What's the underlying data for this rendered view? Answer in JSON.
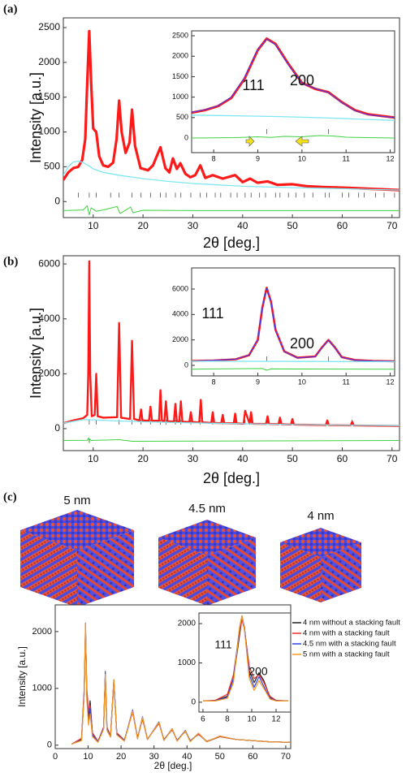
{
  "panels": [
    "(a)",
    "(b)",
    "(c)"
  ],
  "structures": [
    "5 nm",
    "4.5 nm",
    "4 nm"
  ],
  "chart_data": [
    {
      "type": "line",
      "xlabel": "2θ [deg.]",
      "ylabel": "Intensity [a.u.]",
      "xlim": [
        4,
        71.5
      ],
      "xticks": [
        10,
        20,
        30,
        40,
        50,
        60,
        70
      ],
      "ylim": [
        -230,
        2640
      ],
      "yticks": [
        0,
        500,
        1000,
        1500,
        2000,
        2500
      ],
      "series": [
        {
          "color": "#ff1a1a",
          "x": [
            4,
            5,
            6,
            7,
            7.8,
            8.4,
            8.8,
            9.2,
            9.6,
            10.0,
            10.6,
            11.2,
            12,
            13,
            14,
            14.7,
            15.2,
            15.7,
            16.5,
            17.3,
            17.8,
            18.4,
            19.5,
            21,
            22,
            23.5,
            24.5,
            25.3,
            26,
            26.8,
            27.5,
            28.5,
            29.5,
            30.5,
            31.5,
            32.5,
            34,
            36,
            38.5,
            40,
            41.5,
            43,
            45,
            47,
            50,
            53,
            56,
            60,
            65,
            71.5
          ],
          "values": [
            310,
            420,
            480,
            500,
            600,
            900,
            1700,
            2450,
            1700,
            1050,
            1000,
            650,
            520,
            500,
            560,
            900,
            1450,
            1000,
            700,
            850,
            1320,
            800,
            480,
            450,
            520,
            780,
            480,
            420,
            620,
            470,
            550,
            400,
            350,
            380,
            520,
            340,
            380,
            330,
            380,
            280,
            330,
            270,
            290,
            240,
            250,
            220,
            210,
            200,
            185,
            165
          ]
        },
        {
          "color": "#7fe6f2",
          "x": [
            4,
            5,
            6,
            7,
            8,
            9,
            10,
            12,
            15,
            20,
            25,
            30,
            40,
            50,
            60,
            71.5
          ],
          "values": [
            380,
            500,
            570,
            580,
            560,
            520,
            470,
            420,
            380,
            330,
            290,
            260,
            220,
            200,
            185,
            165
          ]
        },
        {
          "color": "#3ed23e",
          "x": [
            4,
            8,
            8.8,
            9.2,
            9.6,
            10.6,
            12,
            14.8,
            15.4,
            17.5,
            18,
            20,
            30,
            71.5
          ],
          "values": [
            -130,
            -120,
            -60,
            -190,
            -90,
            -140,
            -120,
            -70,
            -170,
            -80,
            -160,
            -125,
            -130,
            -130
          ]
        }
      ],
      "bragg_positions": [
        7,
        9.2,
        10.6,
        13.5,
        15.2,
        17.8,
        19.6,
        21.5,
        23.5,
        24.6,
        26.5,
        27.6,
        29.6,
        31.5,
        32.8,
        34.5,
        35.6,
        37.6,
        38.9,
        40.5,
        41.7,
        43.4,
        44.6,
        46.6,
        47.5,
        49.2,
        50.7,
        52.4,
        54.1,
        56.6,
        57.4,
        60,
        61.3,
        63.3,
        64.4,
        66.7,
        68.4,
        70.5
      ]
    },
    {
      "type": "line",
      "xlim": [
        7.5,
        12.1
      ],
      "xticks": [
        8,
        9,
        10,
        11,
        12
      ],
      "ylim": [
        -357,
        2620
      ],
      "yticks": [
        0,
        500,
        1000,
        1500,
        2000,
        2500
      ],
      "series": [
        {
          "color": "#ff1a1a",
          "x": [
            7.5,
            7.8,
            8.1,
            8.4,
            8.7,
            9.0,
            9.2,
            9.4,
            9.7,
            10.0,
            10.3,
            10.6,
            10.9,
            11.2,
            11.5,
            11.8,
            12.1
          ],
          "values": [
            620,
            680,
            780,
            980,
            1450,
            2150,
            2430,
            2300,
            1800,
            1350,
            1200,
            1120,
            880,
            680,
            580,
            540,
            500
          ]
        },
        {
          "color": "#3a3aff",
          "x": [
            7.5,
            7.8,
            8.1,
            8.4,
            8.7,
            9.0,
            9.2,
            9.4,
            9.7,
            10.0,
            10.3,
            10.6,
            10.9,
            11.2,
            11.5,
            11.8,
            12.1
          ],
          "values": [
            630,
            690,
            790,
            1000,
            1480,
            2170,
            2420,
            2280,
            1780,
            1340,
            1210,
            1110,
            870,
            670,
            570,
            530,
            500
          ]
        },
        {
          "color": "#7fe6f2",
          "x": [
            7.5,
            8.5,
            9.5,
            10.5,
            11.5,
            12.1
          ],
          "values": [
            560,
            545,
            525,
            495,
            455,
            430
          ]
        },
        {
          "color": "#3ed23e",
          "x": [
            7.5,
            8.5,
            9.0,
            9.3,
            9.6,
            10.0,
            10.4,
            10.7,
            11.0,
            11.5,
            12.1
          ],
          "values": [
            0,
            10,
            30,
            15,
            40,
            30,
            60,
            50,
            20,
            10,
            0
          ]
        }
      ],
      "bragg_positions": [
        9.2,
        10.6
      ],
      "annotations": [
        "111",
        "200"
      ]
    },
    {
      "type": "line",
      "xlabel": "2θ [deg.]",
      "ylabel": "Intensity [a.u.]",
      "xlim": [
        4,
        71.5
      ],
      "xticks": [
        10,
        20,
        30,
        40,
        50,
        60,
        70
      ],
      "ylim": [
        -800,
        6300
      ],
      "yticks": [
        0,
        2000,
        4000,
        6000
      ],
      "series": [
        {
          "color": "#ff1a1a",
          "x": [
            4,
            6,
            8,
            8.8,
            9.0,
            9.2,
            9.4,
            9.7,
            10.3,
            10.6,
            10.9,
            12,
            14.8,
            15.2,
            15.6,
            17.4,
            17.8,
            18.2,
            19.3,
            19.6,
            19.9,
            21.2,
            21.5,
            21.8,
            23.2,
            23.5,
            23.8,
            24.3,
            24.6,
            24.9,
            26.2,
            26.5,
            26.8,
            27.3,
            27.6,
            27.9,
            29.3,
            29.6,
            29.9,
            31.3,
            31.6,
            31.9,
            33.7,
            34,
            34.3,
            35.7,
            36,
            36.3,
            38.2,
            38.5,
            38.8,
            40.2,
            40.5,
            41.4,
            41.7,
            42,
            44.7,
            45,
            45.3,
            47.2,
            47.5,
            47.8,
            49.7,
            50,
            50.3,
            56.7,
            57,
            57.3,
            61.7,
            62,
            62.3,
            65,
            71.5
          ],
          "values": [
            200,
            300,
            380,
            500,
            2000,
            6100,
            2000,
            450,
            500,
            2000,
            450,
            400,
            420,
            3850,
            400,
            350,
            3200,
            350,
            300,
            700,
            300,
            290,
            800,
            290,
            290,
            1400,
            290,
            280,
            1000,
            270,
            260,
            900,
            260,
            260,
            1000,
            250,
            240,
            600,
            240,
            230,
            1050,
            230,
            210,
            600,
            210,
            200,
            500,
            200,
            190,
            550,
            190,
            180,
            650,
            180,
            600,
            180,
            170,
            450,
            170,
            160,
            400,
            160,
            150,
            350,
            150,
            130,
            300,
            130,
            120,
            250,
            120,
            110,
            100
          ]
        },
        {
          "color": "#7fe6f2",
          "x": [
            4,
            8,
            10,
            15,
            20,
            30,
            40,
            50,
            60,
            71.5
          ],
          "values": [
            200,
            330,
            320,
            280,
            250,
            210,
            180,
            150,
            130,
            110
          ]
        },
        {
          "color": "#3ed23e",
          "x": [
            4,
            8.8,
            9.1,
            9.2,
            9.3,
            9.6,
            15.2,
            17.8,
            71.5
          ],
          "values": [
            -430,
            -420,
            -330,
            -520,
            -380,
            -430,
            -400,
            -460,
            -430
          ]
        }
      ],
      "bragg_positions": [
        9.2,
        10.6,
        15.2,
        17.8,
        19.6,
        21.5,
        23.5,
        24.6,
        26.5,
        27.6,
        29.6,
        31.5,
        34,
        36,
        38.5,
        40.5,
        41.7,
        45,
        47.5,
        50,
        57,
        62
      ]
    },
    {
      "type": "line",
      "xlim": [
        7.5,
        12.1
      ],
      "xticks": [
        8,
        9,
        10,
        11,
        12
      ],
      "ylim": [
        -830,
        7660
      ],
      "yticks": [
        0,
        2000,
        4000,
        6000
      ],
      "series": [
        {
          "color": "#ff1a1a",
          "x": [
            7.5,
            8,
            8.5,
            8.8,
            9.0,
            9.1,
            9.2,
            9.3,
            9.4,
            9.6,
            9.9,
            10.3,
            10.45,
            10.6,
            10.75,
            10.9,
            11.2,
            11.6,
            12.1
          ],
          "values": [
            350,
            380,
            480,
            800,
            2000,
            4500,
            6100,
            5000,
            2800,
            1100,
            600,
            700,
            1400,
            2000,
            1400,
            650,
            420,
            350,
            320
          ]
        },
        {
          "color": "#3a3aff",
          "x": [
            7.5,
            8,
            8.5,
            8.8,
            9.0,
            9.1,
            9.2,
            9.3,
            9.4,
            9.6,
            9.9,
            10.3,
            10.45,
            10.6,
            10.75,
            10.9,
            11.2,
            11.6,
            12.1
          ],
          "values": [
            350,
            390,
            490,
            820,
            2050,
            4550,
            6050,
            4950,
            2750,
            1080,
            590,
            690,
            1380,
            1980,
            1380,
            640,
            410,
            345,
            320
          ]
        },
        {
          "color": "#7fe6f2",
          "x": [
            7.5,
            12.1
          ],
          "values": [
            330,
            290
          ]
        },
        {
          "color": "#3ed23e",
          "x": [
            7.5,
            9.1,
            9.2,
            9.3,
            12.1
          ],
          "values": [
            -300,
            -250,
            -380,
            -280,
            -300
          ]
        }
      ],
      "bragg_positions": [
        9.2,
        10.6
      ],
      "annotations": [
        "111",
        "200"
      ]
    },
    {
      "type": "line",
      "xlabel": "2θ [deg.]",
      "ylabel": "Intensity [a.u.]",
      "xlim": [
        0,
        71.5
      ],
      "xticks": [
        0,
        10,
        20,
        30,
        40,
        50,
        60,
        70
      ],
      "ylim": [
        -60,
        2470
      ],
      "yticks": [
        0,
        1000,
        2000
      ],
      "x": [
        5,
        8,
        8.8,
        9.2,
        9.6,
        10.1,
        10.6,
        11.3,
        13,
        14.7,
        15.2,
        15.7,
        16.8,
        17.8,
        18.7,
        21,
        23.5,
        25,
        26.5,
        28,
        31.5,
        33,
        35.5,
        37,
        39.5,
        41,
        43.5,
        46,
        50,
        55,
        60,
        65,
        71.5
      ],
      "series": [
        {
          "color": "#222222",
          "values": [
            20,
            100,
            900,
            2050,
            900,
            500,
            780,
            200,
            60,
            300,
            1250,
            300,
            150,
            1150,
            200,
            80,
            600,
            120,
            480,
            100,
            400,
            90,
            280,
            80,
            250,
            70,
            200,
            60,
            150,
            100,
            80,
            60,
            50
          ]
        },
        {
          "color": "#e8322c",
          "values": [
            20,
            120,
            1000,
            2000,
            1000,
            600,
            700,
            220,
            70,
            320,
            1200,
            320,
            160,
            1100,
            220,
            90,
            580,
            130,
            460,
            110,
            380,
            100,
            270,
            90,
            240,
            80,
            190,
            70,
            150,
            100,
            80,
            60,
            50
          ]
        },
        {
          "color": "#3345e6",
          "values": [
            20,
            90,
            950,
            2150,
            850,
            420,
            650,
            180,
            60,
            300,
            1300,
            280,
            150,
            1150,
            190,
            80,
            620,
            120,
            500,
            100,
            410,
            90,
            290,
            80,
            260,
            70,
            210,
            60,
            160,
            100,
            80,
            60,
            50
          ]
        },
        {
          "color": "#f59a1f",
          "values": [
            20,
            80,
            900,
            2150,
            800,
            350,
            550,
            150,
            50,
            280,
            1250,
            260,
            140,
            1150,
            180,
            70,
            600,
            110,
            490,
            100,
            400,
            80,
            290,
            70,
            250,
            60,
            210,
            60,
            160,
            100,
            80,
            60,
            50
          ]
        }
      ]
    },
    {
      "type": "line",
      "xlim": [
        5.67,
        13.2
      ],
      "xticks": [
        6,
        8,
        10,
        12
      ],
      "ylim": [
        -250,
        2270
      ],
      "yticks": [
        0,
        1000,
        2000
      ],
      "x": [
        6,
        7,
        8,
        8.5,
        9,
        9.2,
        9.4,
        9.8,
        10.2,
        10.6,
        11,
        11.5,
        12,
        13
      ],
      "series": [
        {
          "name": "4 nm without a stacking fault",
          "color": "#222222",
          "values": [
            30,
            40,
            150,
            600,
            1700,
            2150,
            1900,
            800,
            500,
            750,
            550,
            120,
            40,
            30
          ]
        },
        {
          "name": "4 nm with a stacking fault",
          "color": "#e8322c",
          "values": [
            30,
            50,
            200,
            700,
            1800,
            2100,
            1850,
            900,
            600,
            700,
            500,
            150,
            50,
            30
          ]
        },
        {
          "name": "4.5 nm with a stacking fault",
          "color": "#3345e6",
          "values": [
            30,
            40,
            120,
            600,
            1900,
            2200,
            1900,
            700,
            380,
            650,
            400,
            100,
            40,
            30
          ]
        },
        {
          "name": "5 nm with a stacking fault",
          "color": "#f59a1f",
          "values": [
            30,
            30,
            100,
            500,
            1900,
            2200,
            1850,
            600,
            300,
            550,
            350,
            80,
            30,
            30
          ]
        }
      ],
      "annotations": [
        "111",
        "200"
      ]
    }
  ]
}
